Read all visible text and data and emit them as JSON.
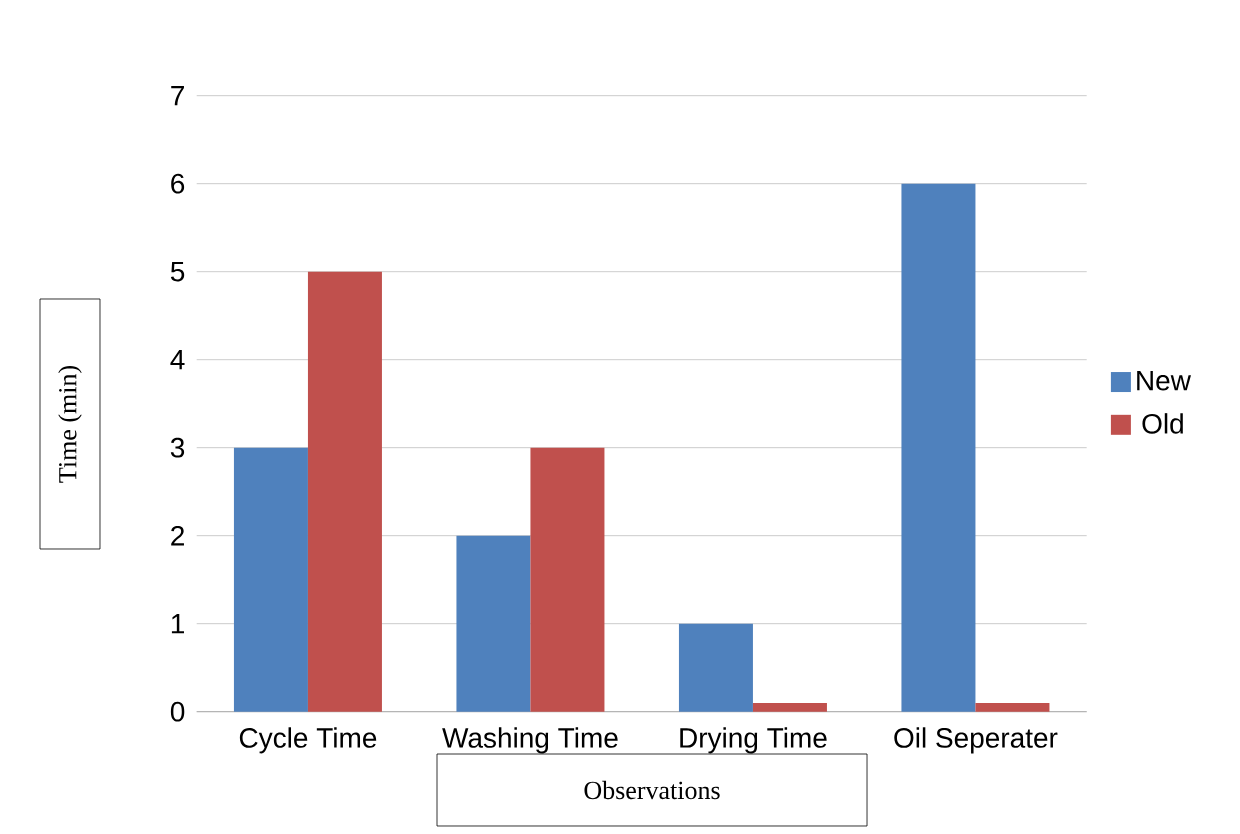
{
  "chart_data": {
    "type": "bar",
    "xlabel": "Observations",
    "ylabel": "Time (min)",
    "categories": [
      "Cycle Time",
      "Washing Time",
      "Drying Time",
      "Oil Seperater"
    ],
    "series": [
      {
        "name": "New",
        "color": "#4f81bd",
        "values": [
          3,
          2,
          1,
          6
        ]
      },
      {
        "name": "Old",
        "color": "#c0504d",
        "values": [
          5,
          3,
          0.1,
          0.1
        ]
      }
    ],
    "ylim": [
      0,
      7
    ],
    "yticks": [
      0,
      1,
      2,
      3,
      4,
      5,
      6,
      7
    ],
    "grid": "y",
    "legend": "right"
  }
}
